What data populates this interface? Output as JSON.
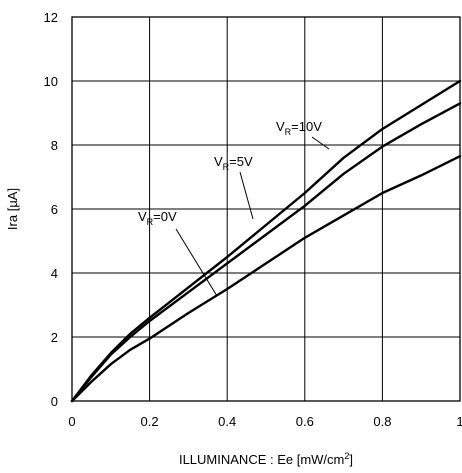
{
  "chart_data": {
    "type": "line",
    "xlabel": "ILLUMINANCE : Ee [mW/cm²]",
    "ylabel": "Ira [µA]",
    "xlim": [
      0,
      1
    ],
    "ylim": [
      0,
      12
    ],
    "grid": true,
    "x_ticks": [
      "0",
      "0.2",
      "0.4",
      "0.6",
      "0.8",
      "1"
    ],
    "y_ticks": [
      "0",
      "2",
      "4",
      "6",
      "8",
      "10",
      "12"
    ],
    "series": [
      {
        "name": "V_R=10V",
        "label_main": "V",
        "label_sub": "R",
        "label_rest": "=10V",
        "x": [
          0,
          0.05,
          0.1,
          0.15,
          0.2,
          0.3,
          0.4,
          0.5,
          0.6,
          0.7,
          0.8,
          0.9,
          1.0
        ],
        "y": [
          0,
          0.8,
          1.5,
          2.1,
          2.6,
          3.55,
          4.5,
          5.5,
          6.5,
          7.6,
          8.5,
          9.25,
          10.0
        ]
      },
      {
        "name": "V_R=5V",
        "label_main": "V",
        "label_sub": "R",
        "label_rest": "=5V",
        "x": [
          0,
          0.05,
          0.1,
          0.15,
          0.2,
          0.3,
          0.4,
          0.5,
          0.6,
          0.7,
          0.8,
          0.9,
          1.0
        ],
        "y": [
          0,
          0.75,
          1.45,
          2.0,
          2.5,
          3.4,
          4.3,
          5.2,
          6.1,
          7.1,
          7.95,
          8.65,
          9.3
        ]
      },
      {
        "name": "V_R=0V",
        "label_main": "V",
        "label_sub": "R",
        "label_rest": "=0V",
        "x": [
          0,
          0.05,
          0.1,
          0.15,
          0.2,
          0.3,
          0.4,
          0.5,
          0.6,
          0.7,
          0.8,
          0.9,
          1.0
        ],
        "y": [
          0,
          0.6,
          1.15,
          1.6,
          1.95,
          2.75,
          3.5,
          4.3,
          5.1,
          5.8,
          6.5,
          7.05,
          7.65
        ]
      }
    ]
  }
}
